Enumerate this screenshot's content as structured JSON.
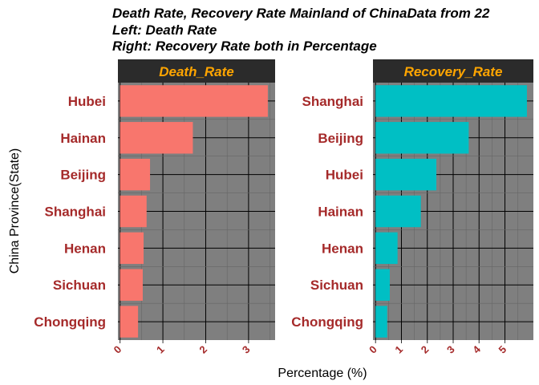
{
  "title_lines": [
    "Death Rate, Recovery Rate Mainland of ChinaData from 22",
    "Left: Death Rate",
    "Right: Recovery Rate both in Percentage"
  ],
  "xlabel": "Percentage (%)",
  "ylabel": "China Province(State)",
  "colors": {
    "panel_bg": "#7f7f7f",
    "strip_bg": "#2b2b2b",
    "strip_text": "#ffa500",
    "category_text": "#a52a2a",
    "tick_text": "#a52a2a",
    "grid_major": "#000000",
    "grid_minor": "#666666"
  },
  "chart_data": [
    {
      "type": "bar",
      "orientation": "horizontal",
      "panel_title": "Death_Rate",
      "color": "#f8766d",
      "categories": [
        "Hubei",
        "Hainan",
        "Beijing",
        "Shanghai",
        "Henan",
        "Sichuan",
        "Chongqing"
      ],
      "values": [
        3.45,
        1.7,
        0.7,
        0.62,
        0.55,
        0.53,
        0.42
      ],
      "xlim": [
        -0.05,
        3.62
      ],
      "ticks": [
        0,
        1,
        2,
        3
      ],
      "tick_labels": [
        "0",
        "1",
        "2",
        "3"
      ],
      "grid": true
    },
    {
      "type": "bar",
      "orientation": "horizontal",
      "panel_title": "Recovery_Rate",
      "color": "#00bfc4",
      "categories": [
        "Shanghai",
        "Beijing",
        "Hubei",
        "Hainan",
        "Henan",
        "Sichuan",
        "Chongqing"
      ],
      "values": [
        5.85,
        3.6,
        2.35,
        1.75,
        0.85,
        0.55,
        0.45
      ],
      "xlim": [
        -0.1,
        6.1
      ],
      "ticks": [
        0,
        1,
        2,
        3,
        4,
        5
      ],
      "tick_labels": [
        "0",
        "1",
        "2",
        "3",
        "4",
        "5"
      ],
      "grid": true
    }
  ]
}
